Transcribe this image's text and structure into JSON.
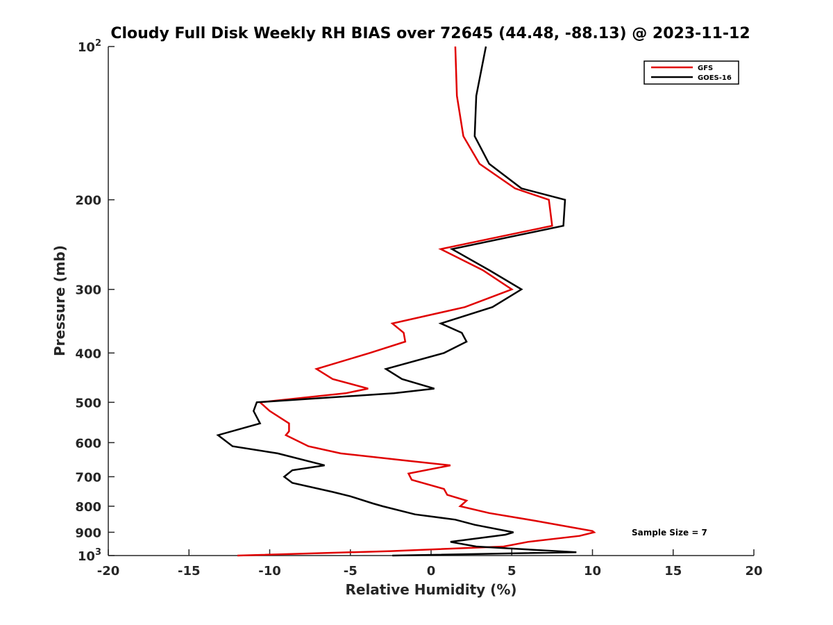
{
  "chart_data": {
    "type": "line",
    "title": "Cloudy Full Disk Weekly RH BIAS over 72645 (44.48, -88.13) @ 2023-11-12",
    "xlabel": "Relative Humidity (%)",
    "ylabel": "Pressure (mb)",
    "xlim": [
      -20,
      20
    ],
    "ylim": [
      100,
      1000
    ],
    "y_scale": "log",
    "y_reversed": true,
    "x_ticks": [
      "-20",
      "-15",
      "-10",
      "-5",
      "0",
      "5",
      "10",
      "15",
      "20"
    ],
    "y_ticks": [
      {
        "value": 100,
        "label": "10",
        "sup": "2"
      },
      {
        "value": 200,
        "label": "200"
      },
      {
        "value": 300,
        "label": "300"
      },
      {
        "value": 400,
        "label": "400"
      },
      {
        "value": 500,
        "label": "500"
      },
      {
        "value": 600,
        "label": "600"
      },
      {
        "value": 700,
        "label": "700"
      },
      {
        "value": 800,
        "label": "800"
      },
      {
        "value": 900,
        "label": "900"
      },
      {
        "value": 1000,
        "label": "10",
        "sup": "3"
      }
    ],
    "legend_position": "top-right",
    "grid": false,
    "annotation": "Sample Size = 7",
    "series": [
      {
        "name": "GFS",
        "color": "#e00000",
        "points": [
          [
            1.5,
            100
          ],
          [
            1.6,
            125
          ],
          [
            2.0,
            150
          ],
          [
            3.0,
            170
          ],
          [
            5.2,
            190
          ],
          [
            7.3,
            200
          ],
          [
            7.5,
            225
          ],
          [
            0.6,
            250
          ],
          [
            3.2,
            275
          ],
          [
            5.0,
            300
          ],
          [
            2.1,
            325
          ],
          [
            -2.4,
            350
          ],
          [
            -1.7,
            365
          ],
          [
            -1.6,
            380
          ],
          [
            -3.8,
            400
          ],
          [
            -7.1,
            430
          ],
          [
            -6.1,
            450
          ],
          [
            -3.9,
            470
          ],
          [
            -5.3,
            480
          ],
          [
            -10.6,
            500
          ],
          [
            -10.0,
            520
          ],
          [
            -8.8,
            550
          ],
          [
            -8.8,
            570
          ],
          [
            -9.0,
            580
          ],
          [
            -7.6,
            610
          ],
          [
            -5.6,
            630
          ],
          [
            -1.7,
            650
          ],
          [
            1.2,
            665
          ],
          [
            -1.4,
            690
          ],
          [
            -1.2,
            710
          ],
          [
            0.8,
            740
          ],
          [
            1.0,
            760
          ],
          [
            2.2,
            780
          ],
          [
            1.8,
            800
          ],
          [
            3.6,
            825
          ],
          [
            6.5,
            855
          ],
          [
            10.0,
            895
          ],
          [
            10.1,
            900
          ],
          [
            9.2,
            915
          ],
          [
            6.0,
            940
          ],
          [
            4.5,
            960
          ],
          [
            -2.5,
            980
          ],
          [
            -12.0,
            1000
          ]
        ]
      },
      {
        "name": "GOES-16",
        "color": "#000000",
        "points": [
          [
            3.4,
            100
          ],
          [
            2.8,
            125
          ],
          [
            2.7,
            150
          ],
          [
            3.6,
            170
          ],
          [
            5.6,
            190
          ],
          [
            8.3,
            200
          ],
          [
            8.2,
            225
          ],
          [
            1.3,
            250
          ],
          [
            3.6,
            275
          ],
          [
            5.6,
            300
          ],
          [
            3.8,
            325
          ],
          [
            0.6,
            350
          ],
          [
            1.9,
            365
          ],
          [
            2.2,
            380
          ],
          [
            0.8,
            400
          ],
          [
            -2.8,
            430
          ],
          [
            -1.8,
            450
          ],
          [
            0.2,
            470
          ],
          [
            -2.3,
            480
          ],
          [
            -10.8,
            500
          ],
          [
            -11.0,
            520
          ],
          [
            -10.6,
            550
          ],
          [
            -13.2,
            580
          ],
          [
            -12.3,
            610
          ],
          [
            -9.5,
            630
          ],
          [
            -6.6,
            665
          ],
          [
            -8.6,
            680
          ],
          [
            -9.1,
            700
          ],
          [
            -8.6,
            720
          ],
          [
            -6.1,
            750
          ],
          [
            -5.0,
            765
          ],
          [
            -3.6,
            790
          ],
          [
            -3.0,
            800
          ],
          [
            -1.0,
            830
          ],
          [
            1.5,
            850
          ],
          [
            2.7,
            870
          ],
          [
            5.1,
            900
          ],
          [
            4.6,
            910
          ],
          [
            1.2,
            940
          ],
          [
            2.8,
            960
          ],
          [
            9.0,
            985
          ],
          [
            -2.4,
            1000
          ]
        ]
      }
    ]
  }
}
